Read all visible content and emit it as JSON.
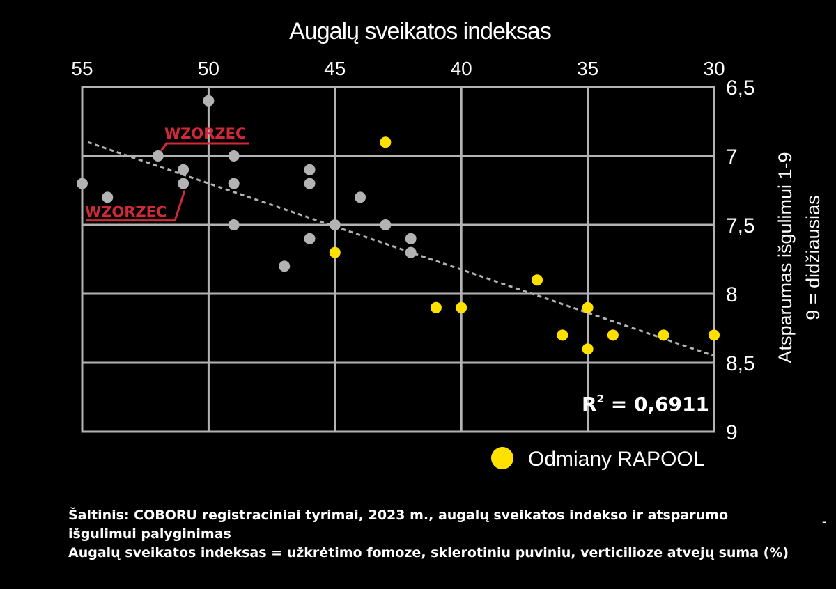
{
  "chart_data": {
    "type": "scatter",
    "title": "Augalų sveikatos indeksas",
    "ylabel_line1": "Atsparumas išgulimui 1-9",
    "ylabel_line2": "9 = didžiausias",
    "x_axis": {
      "position": "top",
      "reversed": true,
      "range": [
        55,
        30
      ],
      "ticks": [
        55,
        50,
        45,
        40,
        35,
        30
      ]
    },
    "y_axis": {
      "position": "right",
      "reversed": true,
      "range": [
        6.5,
        9
      ],
      "ticks": [
        6.5,
        7,
        7.5,
        8,
        8.5,
        9
      ],
      "tick_labels": [
        "6,5",
        "7",
        "7,5",
        "8",
        "8,5",
        "9"
      ]
    },
    "grid": true,
    "series": [
      {
        "color": "#b3b3b3",
        "points": [
          [
            55,
            7.2
          ],
          [
            54,
            7.3
          ],
          [
            52,
            7.0
          ],
          [
            51,
            7.1
          ],
          [
            51,
            7.2
          ],
          [
            50,
            6.6
          ],
          [
            49,
            7.0
          ],
          [
            49,
            7.2
          ],
          [
            49,
            7.5
          ],
          [
            47,
            7.8
          ],
          [
            46,
            7.1
          ],
          [
            46,
            7.2
          ],
          [
            46,
            7.6
          ],
          [
            45,
            7.5
          ],
          [
            44,
            7.3
          ],
          [
            43,
            7.5
          ],
          [
            42,
            7.6
          ],
          [
            42,
            7.7
          ]
        ]
      },
      {
        "name": "Odmiany RAPOOL",
        "color": "#ffe100",
        "points": [
          [
            43,
            6.9
          ],
          [
            45,
            7.7
          ],
          [
            41,
            8.1
          ],
          [
            40,
            8.1
          ],
          [
            37,
            7.9
          ],
          [
            35,
            8.1
          ],
          [
            36,
            8.3
          ],
          [
            35,
            8.4
          ],
          [
            34,
            8.3
          ],
          [
            32,
            8.3
          ],
          [
            30,
            8.3
          ]
        ]
      }
    ],
    "trendline": {
      "from": [
        55,
        6.9
      ],
      "to": [
        30,
        8.45
      ],
      "style": "dashed",
      "color": "#b3b3b3"
    },
    "r2_label": "R",
    "r2_sup": "2",
    "r2_value": " = 0,6911",
    "annotations": [
      {
        "text": "WZORZEC",
        "color": "#d02a3a",
        "target": [
          52,
          7.0
        ],
        "side": "upper"
      },
      {
        "text": "WZORZEC",
        "color": "#d02a3a",
        "target": [
          51,
          7.2
        ],
        "side": "lower"
      }
    ]
  },
  "source": {
    "line1": "Šaltinis: COBORU registraciniai tyrimai, 2023 m., augalų sveikatos indekso ir atsparumo",
    "line2": "išgulimui palyginimas",
    "line3": "Augalų sveikatos indeksas = užkrėtimo fomoze, sklerotiniu puviniu, verticilioze atvejų suma (%)",
    "dash": "-"
  }
}
